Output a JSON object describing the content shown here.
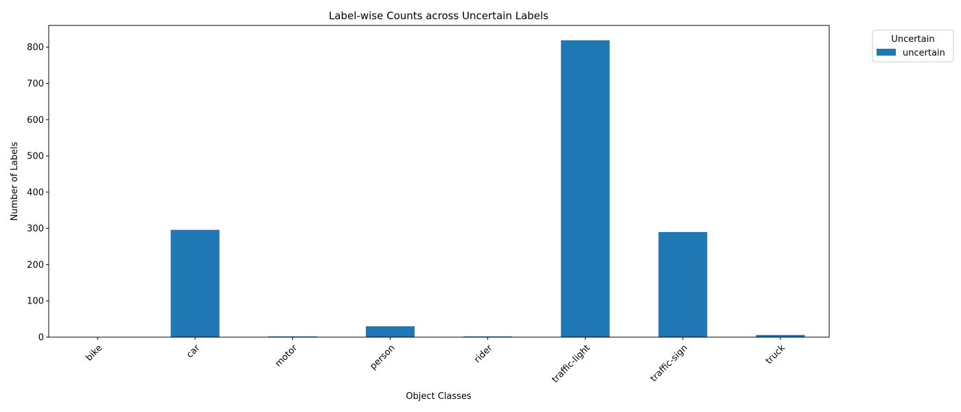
{
  "chart_data": {
    "type": "bar",
    "title": "Label-wise Counts across Uncertain Labels",
    "xlabel": "Object Classes",
    "ylabel": "Number of Labels",
    "categories": [
      "bike",
      "car",
      "motor",
      "person",
      "rider",
      "traffic-light",
      "traffic-sign",
      "truck"
    ],
    "series": [
      {
        "name": "uncertain",
        "color": "#1f77b4",
        "values": [
          0,
          296,
          2,
          30,
          2,
          819,
          290,
          6
        ]
      }
    ],
    "ylim": [
      0,
      860
    ],
    "yticks": [
      0,
      100,
      200,
      300,
      400,
      500,
      600,
      700,
      800
    ],
    "grid": false,
    "legend": {
      "title": "Uncertain",
      "placement": "outside-top-right"
    }
  }
}
